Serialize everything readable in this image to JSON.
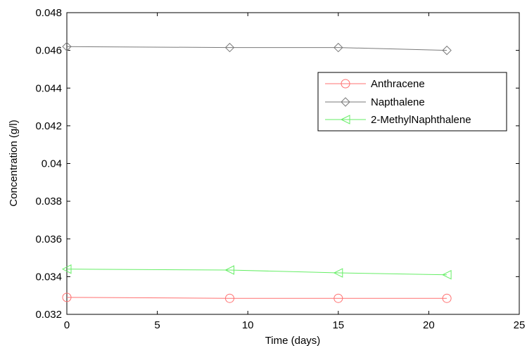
{
  "chart_data": {
    "type": "line",
    "xlabel": "Time (days)",
    "ylabel": "Concentration (g/l)",
    "xlim": [
      0,
      25
    ],
    "ylim": [
      0.032,
      0.048
    ],
    "xticks": [
      0,
      5,
      10,
      15,
      20,
      25
    ],
    "xtick_labels": [
      "0",
      "5",
      "10",
      "15",
      "20",
      "25"
    ],
    "yticks": [
      0.032,
      0.034,
      0.036,
      0.038,
      0.04,
      0.042,
      0.044,
      0.046,
      0.048
    ],
    "ytick_labels": [
      "0.032",
      "0.034",
      "0.036",
      "0.038",
      "0.04",
      "0.042",
      "0.044",
      "0.046",
      "0.048"
    ],
    "grid": false,
    "legend_position": "top-right",
    "series": [
      {
        "name": "Anthracene",
        "color": "#ff7070",
        "marker": "circle",
        "x": [
          0,
          9,
          15,
          21
        ],
        "y": [
          0.0329,
          0.03285,
          0.03285,
          0.03285
        ]
      },
      {
        "name": "Napthalene",
        "color": "#7a7a7a",
        "marker": "diamond",
        "x": [
          0,
          9,
          15,
          21
        ],
        "y": [
          0.0462,
          0.04615,
          0.04615,
          0.046
        ]
      },
      {
        "name": "2-MethylNaphthalene",
        "color": "#66ee66",
        "marker": "triangle-left",
        "x": [
          0,
          9,
          15,
          21
        ],
        "y": [
          0.0344,
          0.03435,
          0.0342,
          0.0341
        ]
      }
    ]
  }
}
